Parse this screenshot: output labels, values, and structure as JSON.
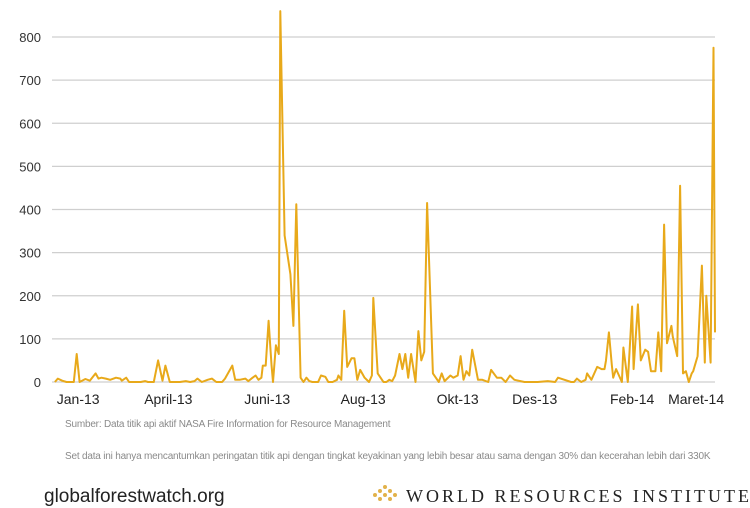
{
  "chart_data": {
    "type": "line",
    "title": "",
    "xlabel": "",
    "ylabel": "",
    "x_unit": "days since early Jan 2013 (approx.)",
    "xlim": [
      -18,
      438
    ],
    "ylim": [
      0,
      800
    ],
    "yticks": [
      0,
      100,
      200,
      300,
      400,
      500,
      600,
      700,
      800
    ],
    "xticks": [
      {
        "label": "Jan-13",
        "x": 0
      },
      {
        "label": "April-13",
        "x": 62
      },
      {
        "label": "Juni-13",
        "x": 130
      },
      {
        "label": "Aug-13",
        "x": 196
      },
      {
        "label": "Okt-13",
        "x": 261
      },
      {
        "label": "Des-13",
        "x": 314
      },
      {
        "label": "Feb-14",
        "x": 381
      },
      {
        "label": "Maret-14",
        "x": 425
      }
    ],
    "grid": true,
    "series": [
      {
        "name": "Titik api",
        "color": "#e8a91a",
        "points": [
          [
            -16,
            0
          ],
          [
            -14,
            8
          ],
          [
            -11,
            3
          ],
          [
            -8,
            0
          ],
          [
            -3,
            0
          ],
          [
            -1,
            65
          ],
          [
            1,
            0
          ],
          [
            5,
            7
          ],
          [
            8,
            3
          ],
          [
            12,
            20
          ],
          [
            14,
            8
          ],
          [
            16,
            10
          ],
          [
            19,
            8
          ],
          [
            22,
            5
          ],
          [
            26,
            10
          ],
          [
            29,
            8
          ],
          [
            30,
            3
          ],
          [
            33,
            10
          ],
          [
            35,
            0
          ],
          [
            39,
            0
          ],
          [
            43,
            0
          ],
          [
            46,
            2
          ],
          [
            48,
            0
          ],
          [
            52,
            0
          ],
          [
            55,
            50
          ],
          [
            58,
            3
          ],
          [
            60,
            38
          ],
          [
            63,
            0
          ],
          [
            67,
            0
          ],
          [
            70,
            0
          ],
          [
            74,
            2
          ],
          [
            77,
            0
          ],
          [
            80,
            2
          ],
          [
            82,
            8
          ],
          [
            85,
            0
          ],
          [
            89,
            5
          ],
          [
            92,
            8
          ],
          [
            95,
            0
          ],
          [
            99,
            0
          ],
          [
            101,
            8
          ],
          [
            106,
            38
          ],
          [
            108,
            5
          ],
          [
            111,
            5
          ],
          [
            115,
            8
          ],
          [
            117,
            2
          ],
          [
            120,
            10
          ],
          [
            122,
            15
          ],
          [
            124,
            5
          ],
          [
            126,
            10
          ],
          [
            127,
            38
          ],
          [
            129,
            38
          ],
          [
            131,
            142
          ],
          [
            133,
            40
          ],
          [
            134,
            0
          ],
          [
            136,
            85
          ],
          [
            138,
            65
          ],
          [
            139,
            860
          ],
          [
            142,
            340
          ],
          [
            146,
            250
          ],
          [
            148,
            130
          ],
          [
            150,
            412
          ],
          [
            153,
            10
          ],
          [
            155,
            0
          ],
          [
            157,
            10
          ],
          [
            159,
            2
          ],
          [
            161,
            0
          ],
          [
            165,
            0
          ],
          [
            167,
            15
          ],
          [
            170,
            12
          ],
          [
            172,
            0
          ],
          [
            175,
            0
          ],
          [
            178,
            5
          ],
          [
            179,
            15
          ],
          [
            181,
            5
          ],
          [
            183,
            165
          ],
          [
            185,
            35
          ],
          [
            188,
            55
          ],
          [
            190,
            55
          ],
          [
            192,
            5
          ],
          [
            194,
            28
          ],
          [
            197,
            10
          ],
          [
            200,
            0
          ],
          [
            202,
            15
          ],
          [
            203,
            195
          ],
          [
            206,
            20
          ],
          [
            210,
            0
          ],
          [
            212,
            0
          ],
          [
            214,
            5
          ],
          [
            216,
            2
          ],
          [
            218,
            15
          ],
          [
            221,
            65
          ],
          [
            223,
            30
          ],
          [
            225,
            65
          ],
          [
            227,
            10
          ],
          [
            229,
            65
          ],
          [
            232,
            0
          ],
          [
            234,
            118
          ],
          [
            236,
            50
          ],
          [
            238,
            70
          ],
          [
            240,
            415
          ],
          [
            244,
            20
          ],
          [
            248,
            0
          ],
          [
            250,
            20
          ],
          [
            252,
            2
          ],
          [
            256,
            15
          ],
          [
            258,
            10
          ],
          [
            261,
            15
          ],
          [
            263,
            60
          ],
          [
            265,
            5
          ],
          [
            267,
            25
          ],
          [
            269,
            15
          ],
          [
            271,
            75
          ],
          [
            275,
            5
          ],
          [
            278,
            5
          ],
          [
            282,
            0
          ],
          [
            284,
            28
          ],
          [
            288,
            10
          ],
          [
            291,
            10
          ],
          [
            294,
            0
          ],
          [
            297,
            15
          ],
          [
            300,
            5
          ],
          [
            307,
            0
          ],
          [
            316,
            0
          ],
          [
            323,
            2
          ],
          [
            328,
            0
          ],
          [
            330,
            10
          ],
          [
            339,
            0
          ],
          [
            341,
            0
          ],
          [
            343,
            8
          ],
          [
            346,
            0
          ],
          [
            349,
            5
          ],
          [
            350,
            20
          ],
          [
            353,
            5
          ],
          [
            357,
            35
          ],
          [
            360,
            30
          ],
          [
            362,
            30
          ],
          [
            363,
            50
          ],
          [
            365,
            115
          ],
          [
            367,
            40
          ],
          [
            368,
            10
          ],
          [
            370,
            30
          ],
          [
            374,
            0
          ],
          [
            375,
            80
          ],
          [
            378,
            0
          ],
          [
            381,
            175
          ],
          [
            382,
            30
          ],
          [
            385,
            180
          ],
          [
            387,
            50
          ],
          [
            390,
            75
          ],
          [
            392,
            70
          ],
          [
            394,
            25
          ],
          [
            397,
            25
          ],
          [
            399,
            115
          ],
          [
            401,
            25
          ],
          [
            403,
            365
          ],
          [
            405,
            90
          ],
          [
            408,
            130
          ],
          [
            409,
            105
          ],
          [
            412,
            60
          ],
          [
            414,
            455
          ],
          [
            416,
            20
          ],
          [
            418,
            25
          ],
          [
            420,
            0
          ],
          [
            422,
            20
          ],
          [
            423,
            25
          ],
          [
            426,
            60
          ],
          [
            429,
            270
          ],
          [
            431,
            45
          ],
          [
            432,
            200
          ],
          [
            435,
            45
          ],
          [
            437,
            775
          ],
          [
            438,
            115
          ]
        ]
      }
    ]
  },
  "footer": {
    "source": "Sumber: Data titik api aktif NASA Fire Information  for Resource Management",
    "note": "Set data ini hanya mencantumkan peringatan titik api dengan tingkat keyakinan yang lebih besar atau sama dengan 30% dan kecerahan lebih dari 330K",
    "site": "globalforestwatch.org",
    "org": "WORLD RESOURCES INSTITUTE"
  },
  "colors": {
    "line": "#e8a91a",
    "grid": "#cfcfcf",
    "logo": "#e2b24a"
  }
}
